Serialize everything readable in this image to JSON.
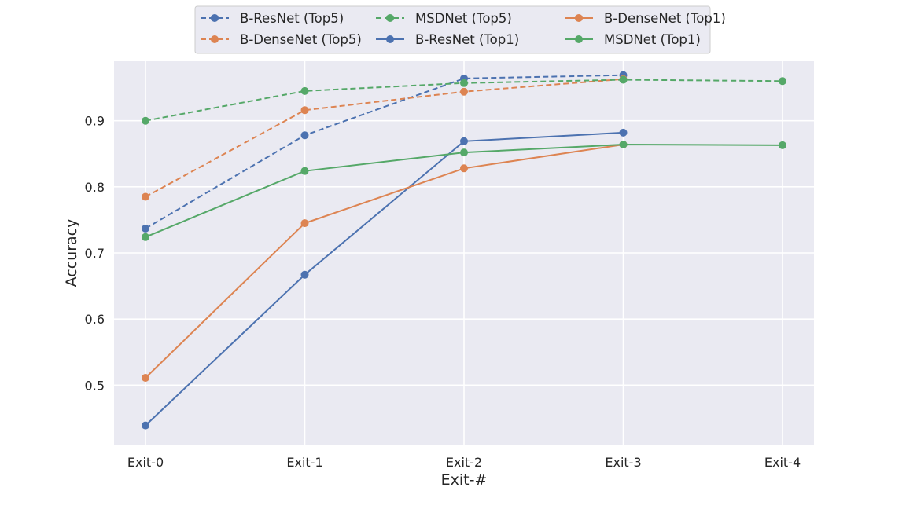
{
  "chart_data": {
    "type": "line",
    "title": "",
    "xlabel": "Exit-#",
    "ylabel": "Accuracy",
    "categories": [
      "Exit-0",
      "Exit-1",
      "Exit-2",
      "Exit-3",
      "Exit-4"
    ],
    "ylim": [
      0.41,
      0.99
    ],
    "yticks": [
      0.5,
      0.6,
      0.7,
      0.8,
      0.9
    ],
    "grid": true,
    "legend_position": "top-center",
    "series": [
      {
        "name": "B-ResNet (Top5)",
        "color": "#4c72b0",
        "dashed": true,
        "values": [
          0.737,
          0.878,
          0.964,
          0.969,
          null
        ]
      },
      {
        "name": "B-DenseNet (Top5)",
        "color": "#dd8452",
        "dashed": true,
        "values": [
          0.785,
          0.916,
          0.944,
          0.963,
          null
        ]
      },
      {
        "name": "MSDNet (Top5)",
        "color": "#55a868",
        "dashed": true,
        "values": [
          0.9,
          0.945,
          0.957,
          0.962,
          0.96
        ]
      },
      {
        "name": "B-ResNet (Top1)",
        "color": "#4c72b0",
        "dashed": false,
        "values": [
          0.439,
          0.667,
          0.869,
          0.882,
          null
        ]
      },
      {
        "name": "B-DenseNet (Top1)",
        "color": "#dd8452",
        "dashed": false,
        "values": [
          0.511,
          0.745,
          0.828,
          0.864,
          null
        ]
      },
      {
        "name": "MSDNet (Top1)",
        "color": "#55a868",
        "dashed": false,
        "values": [
          0.724,
          0.824,
          0.852,
          0.864,
          0.863
        ]
      }
    ]
  }
}
